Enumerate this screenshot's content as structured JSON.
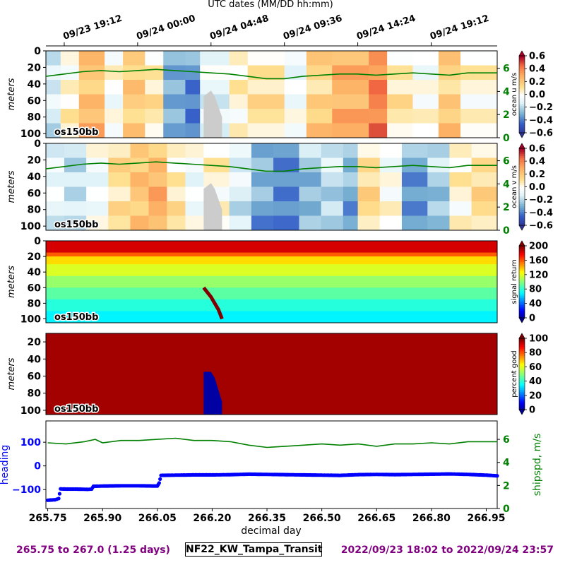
{
  "top_axis": {
    "title": "UTC dates (MM/DD hh:mm)",
    "tick_labels": [
      "09/23 19:12",
      "09/24 00:00",
      "09/24 04:48",
      "09/24 09:36",
      "09/24 14:24",
      "09/24 19:12"
    ],
    "tick_values": [
      265.8,
      266.0,
      266.2,
      266.4,
      266.6,
      266.8
    ]
  },
  "footer": {
    "left": "265.75 to 267.0 (1.25 days)",
    "center": "NF22_KW_Tampa_Transit",
    "right": "2022/09/23 18:02 to 2022/09/24 23:57"
  },
  "colors": {
    "heading": "#0000ff",
    "shipspd": "#008000",
    "footer": "#800080",
    "missing": "#cccccc"
  },
  "chart_data": [
    {
      "type": "heatmap",
      "ylabel": "meters",
      "yticks": [
        0,
        20,
        40,
        60,
        80,
        100
      ],
      "ylim": [
        105,
        0
      ],
      "xlim": [
        265.75,
        266.98
      ],
      "annotation": "os150bb",
      "colorbar": {
        "label": "ocean u m/s",
        "colormap": "RdYlBu_r",
        "range": [
          -0.6,
          0.6
        ],
        "ticks": [
          "0.6",
          "0.4",
          "0.2",
          "0.0",
          "−0.2",
          "−0.4",
          "−0.6"
        ]
      },
      "right_axis": {
        "color": "#008000",
        "ticks": [
          "6",
          "4",
          "2",
          "0"
        ],
        "range": [
          0,
          7.5
        ]
      },
      "series": [
        {
          "points": [
            {
              "x": 265.75,
              "y": 5.3
            },
            {
              "x": 265.8,
              "y": 5.5
            },
            {
              "x": 265.85,
              "y": 5.7
            },
            {
              "x": 265.9,
              "y": 5.8
            },
            {
              "x": 265.95,
              "y": 5.7
            },
            {
              "x": 266.0,
              "y": 5.8
            },
            {
              "x": 266.05,
              "y": 5.9
            },
            {
              "x": 266.1,
              "y": 5.8
            },
            {
              "x": 266.15,
              "y": 5.7
            },
            {
              "x": 266.2,
              "y": 5.6
            },
            {
              "x": 266.25,
              "y": 5.5
            },
            {
              "x": 266.3,
              "y": 5.3
            },
            {
              "x": 266.35,
              "y": 5.1
            },
            {
              "x": 266.4,
              "y": 5.1
            },
            {
              "x": 266.45,
              "y": 5.3
            },
            {
              "x": 266.5,
              "y": 5.4
            },
            {
              "x": 266.55,
              "y": 5.5
            },
            {
              "x": 266.6,
              "y": 5.5
            },
            {
              "x": 266.65,
              "y": 5.4
            },
            {
              "x": 266.7,
              "y": 5.5
            },
            {
              "x": 266.75,
              "y": 5.6
            },
            {
              "x": 266.8,
              "y": 5.5
            },
            {
              "x": 266.85,
              "y": 5.4
            },
            {
              "x": 266.9,
              "y": 5.6
            },
            {
              "x": 266.95,
              "y": 5.6
            },
            {
              "x": 266.98,
              "y": 5.6
            }
          ]
        }
      ],
      "velocity_bands": [
        {
          "start": 265.75,
          "end": 265.79,
          "value": -0.15
        },
        {
          "start": 265.79,
          "end": 265.84,
          "value": 0.05
        },
        {
          "start": 265.84,
          "end": 265.91,
          "value": 0.28
        },
        {
          "start": 265.91,
          "end": 265.96,
          "value": 0.0
        },
        {
          "start": 265.96,
          "end": 266.02,
          "value": 0.22
        },
        {
          "start": 266.02,
          "end": 266.07,
          "value": 0.1
        },
        {
          "start": 266.07,
          "end": 266.13,
          "value": -0.35
        },
        {
          "start": 266.13,
          "end": 266.17,
          "value": -0.45
        },
        {
          "start": 266.17,
          "end": 266.25,
          "value": -0.1
        },
        {
          "start": 266.25,
          "end": 266.3,
          "value": 0.05
        },
        {
          "start": 266.3,
          "end": 266.4,
          "value": 0.12
        },
        {
          "start": 266.4,
          "end": 266.46,
          "value": -0.05
        },
        {
          "start": 266.46,
          "end": 266.53,
          "value": 0.2
        },
        {
          "start": 266.53,
          "end": 266.63,
          "value": 0.35
        },
        {
          "start": 266.63,
          "end": 266.68,
          "value": 0.48
        },
        {
          "start": 266.68,
          "end": 266.75,
          "value": 0.1
        },
        {
          "start": 266.75,
          "end": 266.82,
          "value": 0.0
        },
        {
          "start": 266.82,
          "end": 266.88,
          "value": 0.22
        },
        {
          "start": 266.88,
          "end": 266.98,
          "value": 0.05
        }
      ],
      "missing_region": {
        "x": [
          266.18,
          266.18,
          266.2,
          266.21,
          266.23,
          266.23
        ],
        "y": [
          105,
          55,
          48,
          55,
          80,
          105
        ]
      }
    },
    {
      "type": "heatmap",
      "ylabel": "meters",
      "yticks": [
        0,
        20,
        40,
        60,
        80,
        100
      ],
      "ylim": [
        105,
        0
      ],
      "xlim": [
        265.75,
        266.98
      ],
      "annotation": "os150bb",
      "colorbar": {
        "label": "ocean v m/s",
        "colormap": "RdYlBu_r",
        "range": [
          -0.6,
          0.6
        ],
        "ticks": [
          "0.6",
          "0.4",
          "0.2",
          "0.0",
          "−0.2",
          "−0.4",
          "−0.6"
        ]
      },
      "right_axis": {
        "color": "#008000",
        "ticks": [
          "6",
          "4",
          "2",
          "0"
        ],
        "range": [
          0,
          7.5
        ]
      },
      "series": [
        {
          "points": [
            {
              "x": 265.75,
              "y": 5.3
            },
            {
              "x": 265.8,
              "y": 5.5
            },
            {
              "x": 265.85,
              "y": 5.7
            },
            {
              "x": 265.9,
              "y": 5.8
            },
            {
              "x": 265.95,
              "y": 5.7
            },
            {
              "x": 266.0,
              "y": 5.8
            },
            {
              "x": 266.05,
              "y": 5.9
            },
            {
              "x": 266.1,
              "y": 5.8
            },
            {
              "x": 266.15,
              "y": 5.7
            },
            {
              "x": 266.2,
              "y": 5.6
            },
            {
              "x": 266.25,
              "y": 5.5
            },
            {
              "x": 266.3,
              "y": 5.3
            },
            {
              "x": 266.35,
              "y": 5.1
            },
            {
              "x": 266.4,
              "y": 5.1
            },
            {
              "x": 266.45,
              "y": 5.3
            },
            {
              "x": 266.5,
              "y": 5.4
            },
            {
              "x": 266.55,
              "y": 5.5
            },
            {
              "x": 266.6,
              "y": 5.5
            },
            {
              "x": 266.65,
              "y": 5.4
            },
            {
              "x": 266.7,
              "y": 5.5
            },
            {
              "x": 266.75,
              "y": 5.6
            },
            {
              "x": 266.8,
              "y": 5.5
            },
            {
              "x": 266.85,
              "y": 5.4
            },
            {
              "x": 266.9,
              "y": 5.6
            },
            {
              "x": 266.95,
              "y": 5.6
            },
            {
              "x": 266.98,
              "y": 5.6
            }
          ]
        }
      ],
      "velocity_bands": [
        {
          "start": 265.75,
          "end": 265.8,
          "value": -0.1
        },
        {
          "start": 265.8,
          "end": 265.86,
          "value": -0.2
        },
        {
          "start": 265.86,
          "end": 265.92,
          "value": -0.05
        },
        {
          "start": 265.92,
          "end": 265.98,
          "value": 0.15
        },
        {
          "start": 265.98,
          "end": 266.03,
          "value": 0.25
        },
        {
          "start": 266.03,
          "end": 266.08,
          "value": 0.32
        },
        {
          "start": 266.08,
          "end": 266.13,
          "value": 0.1
        },
        {
          "start": 266.13,
          "end": 266.18,
          "value": -0.05
        },
        {
          "start": 266.18,
          "end": 266.25,
          "value": 0.05
        },
        {
          "start": 266.25,
          "end": 266.31,
          "value": -0.15
        },
        {
          "start": 266.31,
          "end": 266.37,
          "value": -0.35
        },
        {
          "start": 266.37,
          "end": 266.44,
          "value": -0.45
        },
        {
          "start": 266.44,
          "end": 266.5,
          "value": -0.3
        },
        {
          "start": 266.5,
          "end": 266.56,
          "value": -0.2
        },
        {
          "start": 266.56,
          "end": 266.6,
          "value": -0.35
        },
        {
          "start": 266.6,
          "end": 266.66,
          "value": 0.15
        },
        {
          "start": 266.66,
          "end": 266.72,
          "value": 0.0
        },
        {
          "start": 266.72,
          "end": 266.79,
          "value": -0.4
        },
        {
          "start": 266.79,
          "end": 266.85,
          "value": -0.25
        },
        {
          "start": 266.85,
          "end": 266.91,
          "value": 0.05
        },
        {
          "start": 266.91,
          "end": 266.98,
          "value": 0.15
        }
      ],
      "missing_region": {
        "x": [
          266.18,
          266.18,
          266.2,
          266.21,
          266.23,
          266.23
        ],
        "y": [
          105,
          55,
          48,
          55,
          80,
          105
        ]
      }
    },
    {
      "type": "heatmap",
      "ylabel": "meters",
      "yticks": [
        0,
        20,
        40,
        60,
        80,
        100
      ],
      "ylim": [
        105,
        0
      ],
      "xlim": [
        265.75,
        266.98
      ],
      "annotation": "os150bb",
      "colorbar": {
        "label": "signal return",
        "colormap": "jet",
        "range": [
          0,
          200
        ],
        "ticks": [
          "200",
          "160",
          "120",
          "80",
          "40",
          "0"
        ]
      },
      "depth_profile": [
        {
          "depth": 10,
          "value": 185
        },
        {
          "depth": 15,
          "value": 160
        },
        {
          "depth": 20,
          "value": 135
        },
        {
          "depth": 30,
          "value": 120
        },
        {
          "depth": 45,
          "value": 105
        },
        {
          "depth": 60,
          "value": 92
        },
        {
          "depth": 75,
          "value": 80
        },
        {
          "depth": 90,
          "value": 70
        },
        {
          "depth": 105,
          "value": 60
        }
      ],
      "feature_track": {
        "x": [
          266.18,
          266.19,
          266.2,
          266.21,
          266.22,
          266.23
        ],
        "y": [
          60,
          66,
          72,
          80,
          88,
          100
        ],
        "value": 195
      }
    },
    {
      "type": "heatmap",
      "ylabel": "meters",
      "yticks": [
        20,
        40,
        60,
        80,
        100
      ],
      "ylim": [
        105,
        10
      ],
      "xlim": [
        265.75,
        266.98
      ],
      "annotation": "os150bb",
      "colorbar": {
        "label": "percent good",
        "colormap": "jet",
        "range": [
          0,
          100
        ],
        "ticks": [
          "100",
          "80",
          "60",
          "40",
          "20",
          "0"
        ]
      },
      "base_value": 97,
      "low_region": {
        "x": [
          266.18,
          266.18,
          266.2,
          266.21,
          266.23,
          266.23
        ],
        "y": [
          105,
          55,
          55,
          62,
          90,
          105
        ],
        "value": 2
      }
    },
    {
      "type": "scatter",
      "xlabel": "decimal day",
      "xticks": [
        "265.75",
        "265.90",
        "266.05",
        "266.20",
        "266.35",
        "266.50",
        "266.65",
        "266.80",
        "266.95"
      ],
      "xtick_values": [
        265.75,
        265.9,
        266.05,
        266.2,
        266.35,
        266.5,
        266.65,
        266.8,
        266.95
      ],
      "xlim": [
        265.745,
        266.98
      ],
      "ylabel": "heading",
      "yticks": [
        "100",
        "0",
        "−100"
      ],
      "ytick_values": [
        100,
        0,
        -100
      ],
      "ylim": [
        -180,
        190
      ],
      "right_axis": {
        "label": "shipspd, m/s",
        "ticks": [
          "6",
          "4",
          "2",
          "0"
        ],
        "range": [
          0,
          7.6
        ]
      },
      "series": [
        {
          "points": [
            {
              "x": 265.75,
              "y": -145
            },
            {
              "x": 265.77,
              "y": -143
            },
            {
              "x": 265.78,
              "y": -138
            },
            {
              "x": 265.785,
              "y": -97
            },
            {
              "x": 265.8,
              "y": -98
            },
            {
              "x": 265.83,
              "y": -98
            },
            {
              "x": 265.86,
              "y": -99
            },
            {
              "x": 265.87,
              "y": -98
            },
            {
              "x": 265.875,
              "y": -86
            },
            {
              "x": 265.9,
              "y": -85
            },
            {
              "x": 265.95,
              "y": -84
            },
            {
              "x": 266.0,
              "y": -84
            },
            {
              "x": 266.05,
              "y": -85
            },
            {
              "x": 266.055,
              "y": -72
            },
            {
              "x": 266.06,
              "y": -40
            },
            {
              "x": 266.1,
              "y": -39
            },
            {
              "x": 266.15,
              "y": -38
            },
            {
              "x": 266.2,
              "y": -38
            },
            {
              "x": 266.25,
              "y": -37
            },
            {
              "x": 266.3,
              "y": -35
            },
            {
              "x": 266.35,
              "y": -36
            },
            {
              "x": 266.4,
              "y": -37
            },
            {
              "x": 266.45,
              "y": -38
            },
            {
              "x": 266.5,
              "y": -39
            },
            {
              "x": 266.55,
              "y": -40
            },
            {
              "x": 266.6,
              "y": -37
            },
            {
              "x": 266.65,
              "y": -36
            },
            {
              "x": 266.7,
              "y": -37
            },
            {
              "x": 266.75,
              "y": -36
            },
            {
              "x": 266.8,
              "y": -35
            },
            {
              "x": 266.85,
              "y": -34
            },
            {
              "x": 266.9,
              "y": -36
            },
            {
              "x": 266.95,
              "y": -39
            },
            {
              "x": 266.98,
              "y": -42
            }
          ]
        },
        {
          "points": [
            {
              "x": 265.75,
              "y": 5.7
            },
            {
              "x": 265.8,
              "y": 5.6
            },
            {
              "x": 265.85,
              "y": 5.8
            },
            {
              "x": 265.88,
              "y": 6.0
            },
            {
              "x": 265.9,
              "y": 5.7
            },
            {
              "x": 265.95,
              "y": 5.9
            },
            {
              "x": 266.0,
              "y": 5.9
            },
            {
              "x": 266.05,
              "y": 6.0
            },
            {
              "x": 266.1,
              "y": 6.1
            },
            {
              "x": 266.15,
              "y": 5.9
            },
            {
              "x": 266.2,
              "y": 5.9
            },
            {
              "x": 266.25,
              "y": 5.8
            },
            {
              "x": 266.3,
              "y": 5.5
            },
            {
              "x": 266.35,
              "y": 5.3
            },
            {
              "x": 266.4,
              "y": 5.4
            },
            {
              "x": 266.45,
              "y": 5.5
            },
            {
              "x": 266.5,
              "y": 5.6
            },
            {
              "x": 266.55,
              "y": 5.5
            },
            {
              "x": 266.6,
              "y": 5.6
            },
            {
              "x": 266.65,
              "y": 5.4
            },
            {
              "x": 266.7,
              "y": 5.6
            },
            {
              "x": 266.75,
              "y": 5.6
            },
            {
              "x": 266.8,
              "y": 5.7
            },
            {
              "x": 266.85,
              "y": 5.6
            },
            {
              "x": 266.9,
              "y": 5.8
            },
            {
              "x": 266.95,
              "y": 5.8
            },
            {
              "x": 266.98,
              "y": 5.8
            }
          ]
        }
      ]
    }
  ]
}
